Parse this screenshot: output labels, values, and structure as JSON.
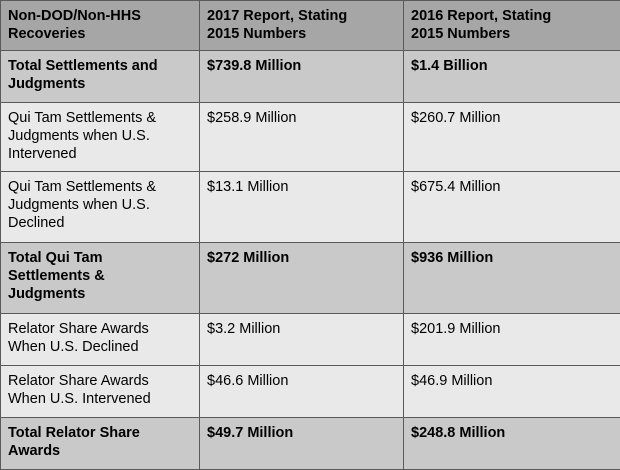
{
  "header": {
    "col1": "Non-DOD/Non-HHS\nRecoveries",
    "col2": "2017 Report, Stating\n2015 Numbers",
    "col3": "2016 Report, Stating\n2015 Numbers"
  },
  "rows": [
    {
      "label": "Total Settlements and\nJudgments",
      "v2017": "$739.8 Million",
      "v2016": "$1.4 Billion",
      "bold": true
    },
    {
      "label": "Qui Tam Settlements &\nJudgments when U.S.\nIntervened",
      "v2017": "$258.9 Million",
      "v2016": "$260.7 Million",
      "bold": false
    },
    {
      "label": "Qui Tam Settlements &\nJudgments when U.S.\nDeclined",
      "v2017": "$13.1 Million",
      "v2016": "$675.4 Million",
      "bold": false
    },
    {
      "label": "Total Qui Tam\nSettlements &\nJudgments",
      "v2017": "$272 Million",
      "v2016": "$936 Million",
      "bold": true
    },
    {
      "label": "Relator Share Awards\nWhen U.S. Declined",
      "v2017": "$3.2 Million",
      "v2016": "$201.9 Million",
      "bold": false
    },
    {
      "label": "Relator Share Awards\nWhen U.S. Intervened",
      "v2017": "$46.6 Million",
      "v2016": "$46.9 Million",
      "bold": false
    },
    {
      "label": "Total Relator Share\nAwards",
      "v2017": "$49.7 Million",
      "v2016": "$248.8 Million",
      "bold": true
    }
  ],
  "colors": {
    "header_bg": "#a6a6a6",
    "total_bg": "#c9c9c9",
    "row_bg": "#e9e9e9",
    "border": "#5a5a5a"
  }
}
